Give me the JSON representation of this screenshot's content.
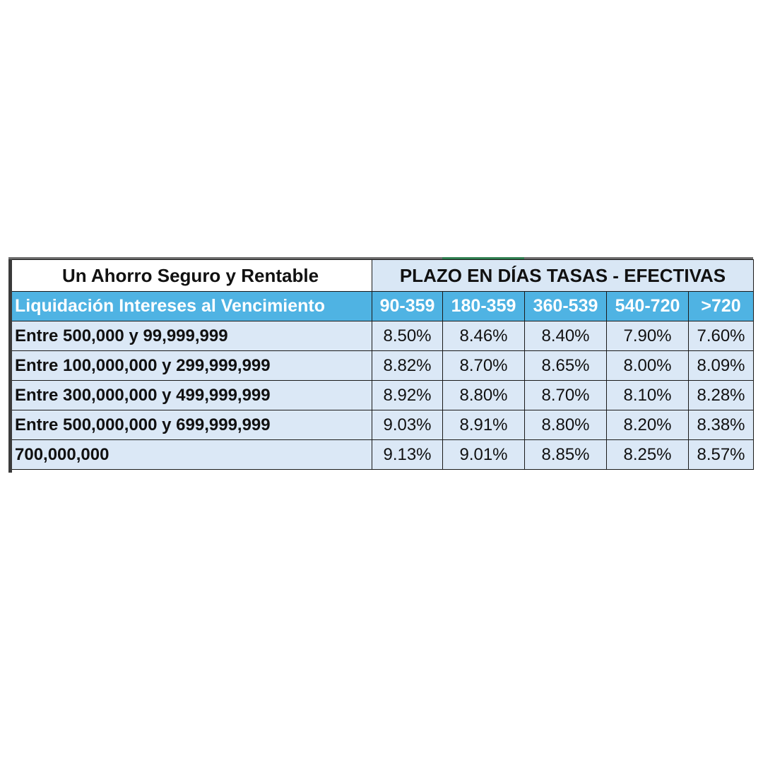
{
  "table": {
    "title": "Un Ahorro Seguro y Rentable",
    "term_header": "PLAZO EN DÍAS TASAS - EFECTIVAS",
    "row_header_label": "Liquidación Intereses al Vencimiento",
    "term_ranges": [
      "90-359",
      "180-359",
      "360-539",
      "540-720",
      ">720"
    ],
    "rows": [
      {
        "amount": "Entre 500,000 y 99,999,999",
        "rates": [
          "8.50%",
          "8.46%",
          "8.40%",
          "7.90%",
          "7.60%"
        ]
      },
      {
        "amount": "Entre 100,000,000 y 299,999,999",
        "rates": [
          "8.82%",
          "8.70%",
          "8.65%",
          "8.00%",
          "8.09%"
        ]
      },
      {
        "amount": "Entre 300,000,000 y 499,999,999",
        "rates": [
          "8.92%",
          "8.80%",
          "8.70%",
          "8.10%",
          "8.28%"
        ]
      },
      {
        "amount": "Entre 500,000,000 y 699,999,999",
        "rates": [
          "9.03%",
          "8.91%",
          "8.80%",
          "8.20%",
          "8.38%"
        ]
      },
      {
        "amount": "700,000,000",
        "rates": [
          "9.13%",
          "9.01%",
          "8.85%",
          "8.25%",
          "8.57%"
        ]
      }
    ]
  },
  "colors": {
    "header_blue": "#4fb3e3",
    "cell_light_blue": "#dbe8f6",
    "accent_green": "#2e7d4f"
  }
}
